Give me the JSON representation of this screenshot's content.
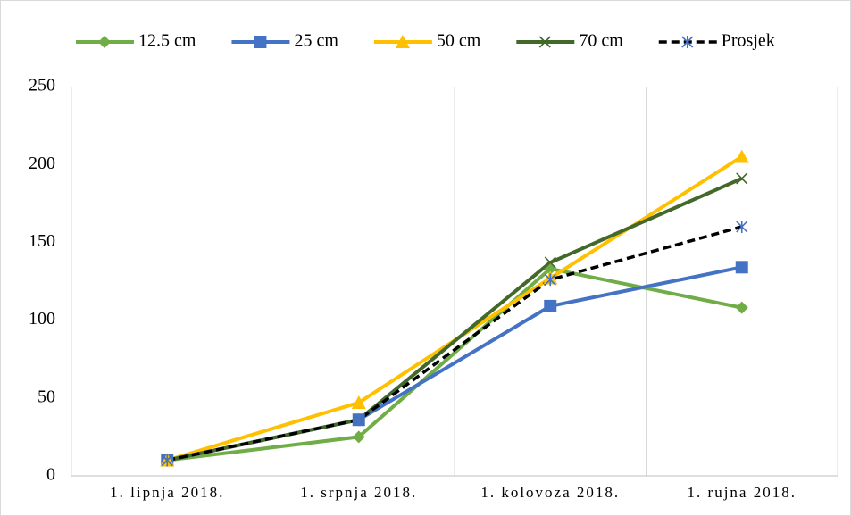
{
  "chart_data": {
    "type": "line",
    "categories": [
      "1. lipnja 2018.",
      "1. srpnja 2018.",
      "1. kolovoza 2018.",
      "1. rujna 2018."
    ],
    "series": [
      {
        "name": "12.5 cm",
        "color": "#70ad47",
        "marker": "diamond",
        "line_style": "solid",
        "values": [
          10,
          25,
          133,
          108
        ]
      },
      {
        "name": "25 cm",
        "color": "#4472c4",
        "marker": "square",
        "line_style": "solid",
        "values": [
          10,
          36,
          109,
          134
        ]
      },
      {
        "name": "50 cm",
        "color": "#ffc000",
        "marker": "triangle",
        "line_style": "solid",
        "values": [
          10,
          47,
          127,
          205
        ]
      },
      {
        "name": "70 cm",
        "color": "#43682b",
        "marker": "x",
        "line_style": "solid",
        "values": [
          10,
          36,
          137,
          191
        ]
      },
      {
        "name": "Prosjek",
        "color": "#000000",
        "marker": "star",
        "line_style": "dashed",
        "values": [
          10,
          36,
          126,
          160
        ]
      }
    ],
    "ylim": [
      0,
      250
    ],
    "yticks": [
      0,
      50,
      100,
      150,
      200,
      250
    ],
    "grid": "vertical",
    "legend": "top"
  }
}
